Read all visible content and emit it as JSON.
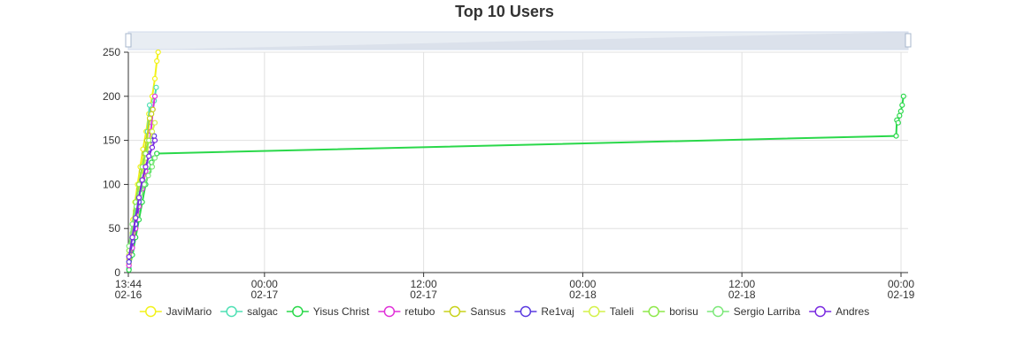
{
  "chart_data": {
    "type": "line",
    "title": "Top 10 Users",
    "xlabel": "",
    "ylabel": "",
    "x_ticks": [
      {
        "t": 0,
        "top": "13:44",
        "bottom": "02-16"
      },
      {
        "t": 10.2667,
        "top": "00:00",
        "bottom": "02-17"
      },
      {
        "t": 22.2667,
        "top": "12:00",
        "bottom": "02-17"
      },
      {
        "t": 34.2667,
        "top": "00:00",
        "bottom": "02-18"
      },
      {
        "t": 46.2667,
        "top": "12:00",
        "bottom": "02-18"
      },
      {
        "t": 58.2667,
        "top": "00:00",
        "bottom": "02-19"
      }
    ],
    "x_unit": "hours after 02-16 13:44",
    "xlim": [
      0,
      58.8
    ],
    "ylim": [
      0,
      250
    ],
    "y_ticks": [
      0,
      50,
      100,
      150,
      200,
      250
    ],
    "grid": true,
    "legend_position": "bottom",
    "data_zoom": true,
    "series": [
      {
        "name": "JaviMario",
        "color": "#f2f21a",
        "points": [
          [
            0.05,
            10
          ],
          [
            0.2,
            30
          ],
          [
            0.35,
            60
          ],
          [
            0.5,
            80
          ],
          [
            0.7,
            100
          ],
          [
            0.9,
            120
          ],
          [
            1.1,
            140
          ],
          [
            1.35,
            160
          ],
          [
            1.55,
            180
          ],
          [
            1.8,
            200
          ],
          [
            2.0,
            220
          ],
          [
            2.15,
            240
          ],
          [
            2.25,
            250
          ]
        ]
      },
      {
        "name": "salgac",
        "color": "#4ee0b4",
        "points": [
          [
            0.05,
            5
          ],
          [
            0.25,
            25
          ],
          [
            0.45,
            45
          ],
          [
            0.65,
            70
          ],
          [
            0.85,
            95
          ],
          [
            1.05,
            115
          ],
          [
            1.25,
            135
          ],
          [
            1.45,
            160
          ],
          [
            1.6,
            190
          ],
          [
            1.75,
            170
          ],
          [
            1.95,
            195
          ],
          [
            2.1,
            210
          ]
        ]
      },
      {
        "name": "Yisus Christ",
        "color": "#2ad84a",
        "points": [
          [
            0.05,
            3
          ],
          [
            0.3,
            20
          ],
          [
            0.55,
            40
          ],
          [
            0.8,
            60
          ],
          [
            1.05,
            80
          ],
          [
            1.3,
            100
          ],
          [
            1.55,
            115
          ],
          [
            1.75,
            125
          ],
          [
            1.95,
            130
          ],
          [
            2.15,
            135
          ],
          [
            57.9,
            155
          ],
          [
            57.95,
            173
          ],
          [
            58.05,
            170
          ],
          [
            58.15,
            178
          ],
          [
            58.25,
            183
          ],
          [
            58.35,
            190
          ],
          [
            58.45,
            200
          ]
        ]
      },
      {
        "name": "retubo",
        "color": "#e031d8",
        "points": [
          [
            0.05,
            8
          ],
          [
            0.3,
            28
          ],
          [
            0.55,
            50
          ],
          [
            0.8,
            75
          ],
          [
            1.05,
            95
          ],
          [
            1.3,
            115
          ],
          [
            1.5,
            140
          ],
          [
            1.7,
            160
          ],
          [
            1.85,
            185
          ],
          [
            2.0,
            200
          ]
        ]
      },
      {
        "name": "Sansus",
        "color": "#c8d21a",
        "points": [
          [
            0.05,
            15
          ],
          [
            0.3,
            40
          ],
          [
            0.55,
            70
          ],
          [
            0.8,
            95
          ],
          [
            1.0,
            115
          ],
          [
            1.2,
            135
          ],
          [
            1.4,
            150
          ],
          [
            1.6,
            175
          ],
          [
            1.75,
            180
          ],
          [
            1.85,
            185
          ]
        ]
      },
      {
        "name": "Re1vaj",
        "color": "#5a3ae0",
        "points": [
          [
            0.05,
            12
          ],
          [
            0.3,
            35
          ],
          [
            0.55,
            55
          ],
          [
            0.8,
            80
          ],
          [
            1.05,
            105
          ],
          [
            1.3,
            125
          ],
          [
            1.55,
            140
          ],
          [
            1.75,
            150
          ],
          [
            1.95,
            155
          ]
        ]
      },
      {
        "name": "Taleli",
        "color": "#d4f24a",
        "points": [
          [
            0.05,
            20
          ],
          [
            0.3,
            45
          ],
          [
            0.55,
            65
          ],
          [
            0.8,
            90
          ],
          [
            1.05,
            110
          ],
          [
            1.3,
            130
          ],
          [
            1.55,
            145
          ],
          [
            1.8,
            160
          ],
          [
            2.0,
            170
          ]
        ]
      },
      {
        "name": "borisu",
        "color": "#8ee84a",
        "points": [
          [
            0.05,
            25
          ],
          [
            0.3,
            55
          ],
          [
            0.55,
            80
          ],
          [
            0.8,
            100
          ],
          [
            1.05,
            120
          ],
          [
            1.3,
            135
          ],
          [
            1.55,
            150
          ]
        ]
      },
      {
        "name": "Sergio Larriba",
        "color": "#7de87a",
        "points": [
          [
            0.05,
            30
          ],
          [
            0.3,
            55
          ],
          [
            0.6,
            75
          ],
          [
            0.9,
            90
          ],
          [
            1.2,
            100
          ],
          [
            1.5,
            110
          ],
          [
            1.8,
            120
          ],
          [
            2.0,
            130
          ]
        ]
      },
      {
        "name": "Andres",
        "color": "#7a2ae0",
        "points": [
          [
            0.05,
            18
          ],
          [
            0.3,
            40
          ],
          [
            0.55,
            62
          ],
          [
            0.8,
            85
          ],
          [
            1.05,
            105
          ],
          [
            1.3,
            120
          ],
          [
            1.55,
            132
          ],
          [
            1.8,
            142
          ],
          [
            2.0,
            150
          ]
        ]
      }
    ]
  }
}
